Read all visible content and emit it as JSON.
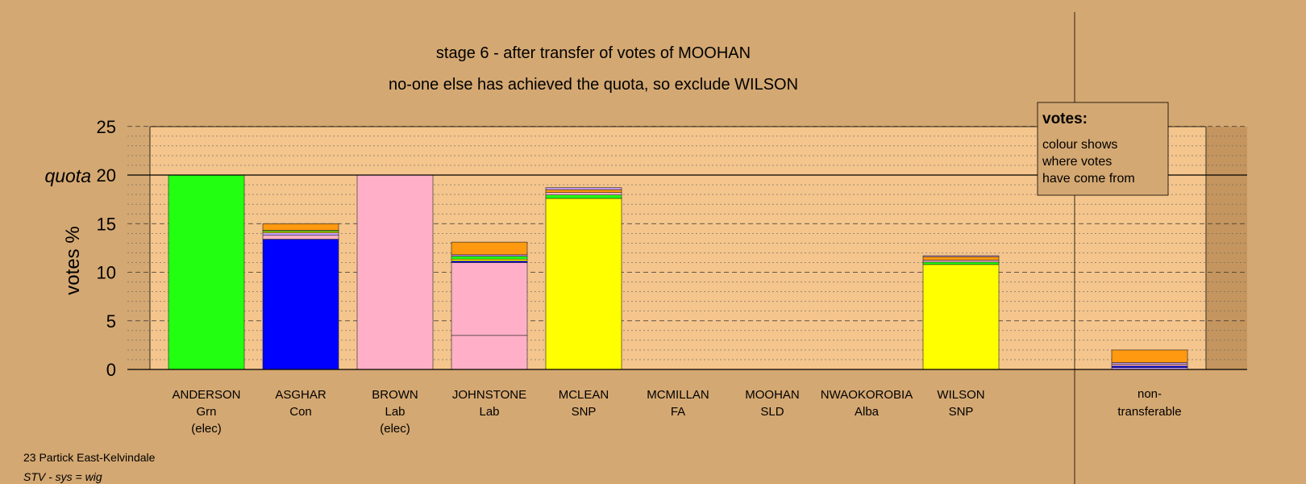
{
  "chart_data": {
    "type": "bar",
    "stacked": true,
    "title": "stage 6 - after transfer of votes of MOOHAN",
    "subtitle": "no-one else has achieved the quota, so exclude WILSON",
    "ylabel": "votes %",
    "ylim": [
      0,
      25
    ],
    "yticks": [
      "0",
      "5",
      "10",
      "15",
      "20",
      "25"
    ],
    "quota": 20,
    "quota_label": "quota",
    "categories": [
      {
        "name": "ANDERSON",
        "party": "Grn",
        "note": "(elec)"
      },
      {
        "name": "ASGHAR",
        "party": "Con",
        "note": ""
      },
      {
        "name": "BROWN",
        "party": "Lab",
        "note": "(elec)"
      },
      {
        "name": "JOHNSTONE",
        "party": "Lab",
        "note": ""
      },
      {
        "name": "MCLEAN",
        "party": "SNP",
        "note": ""
      },
      {
        "name": "MCMILLAN",
        "party": "FA",
        "note": ""
      },
      {
        "name": "MOOHAN",
        "party": "SLD",
        "note": ""
      },
      {
        "name": "NWAOKOROBIA",
        "party": "Alba",
        "note": ""
      },
      {
        "name": "WILSON",
        "party": "SNP",
        "note": ""
      }
    ],
    "bars": [
      {
        "segments": [
          {
            "value": 20.0,
            "color": "#22FF11"
          }
        ]
      },
      {
        "segments": [
          {
            "value": 13.4,
            "color": "#0000FF"
          },
          {
            "value": 0.4,
            "color": "#FFB0C8"
          },
          {
            "value": 0.25,
            "color": "#C8A0FF"
          },
          {
            "value": 0.15,
            "color": "#FFFF00"
          },
          {
            "value": 0.1,
            "color": "#22FF11"
          },
          {
            "value": 0.7,
            "color": "#FF9910"
          }
        ]
      },
      {
        "segments": [
          {
            "value": 20.0,
            "color": "#FFB0C8"
          }
        ]
      },
      {
        "segments": [
          {
            "value": 3.5,
            "color": "#FFB0C8"
          },
          {
            "value": 7.5,
            "color": "#FFB0C8"
          },
          {
            "value": 0.15,
            "color": "#0000FF"
          },
          {
            "value": 0.2,
            "color": "#FFFF00"
          },
          {
            "value": 0.3,
            "color": "#22FF11"
          },
          {
            "value": 0.15,
            "color": "#C8A0FF"
          },
          {
            "value": 1.3,
            "color": "#FF9910"
          }
        ]
      },
      {
        "segments": [
          {
            "value": 17.6,
            "color": "#FFFF00"
          },
          {
            "value": 0.35,
            "color": "#22FF11"
          },
          {
            "value": 0.25,
            "color": "#FFB0C8"
          },
          {
            "value": 0.3,
            "color": "#FF9910"
          },
          {
            "value": 0.2,
            "color": "#C8A0FF"
          }
        ]
      },
      {
        "segments": []
      },
      {
        "segments": []
      },
      {
        "segments": []
      },
      {
        "segments": [
          {
            "value": 10.8,
            "color": "#FFFF00"
          },
          {
            "value": 0.25,
            "color": "#22FF11"
          },
          {
            "value": 0.2,
            "color": "#FFB0C8"
          },
          {
            "value": 0.35,
            "color": "#FF9910"
          },
          {
            "value": 0.1,
            "color": "#C8A0FF"
          }
        ]
      }
    ],
    "nontransferable": {
      "label_line1": "non-",
      "label_line2": "transferable",
      "segments": [
        {
          "value": 0.2,
          "color": "#C8A0FF"
        },
        {
          "value": 0.15,
          "color": "#0000FF"
        },
        {
          "value": 0.2,
          "color": "#FFB0C8"
        },
        {
          "value": 0.15,
          "color": "#C8A0FF"
        },
        {
          "value": 1.3,
          "color": "#FF9910"
        }
      ]
    },
    "legend": {
      "title": "votes:",
      "lines": [
        "colour shows",
        "where votes",
        "have come from"
      ]
    }
  },
  "footer": {
    "constituency": "23 Partick East-Kelvindale",
    "system": "STV - sys = wig"
  }
}
